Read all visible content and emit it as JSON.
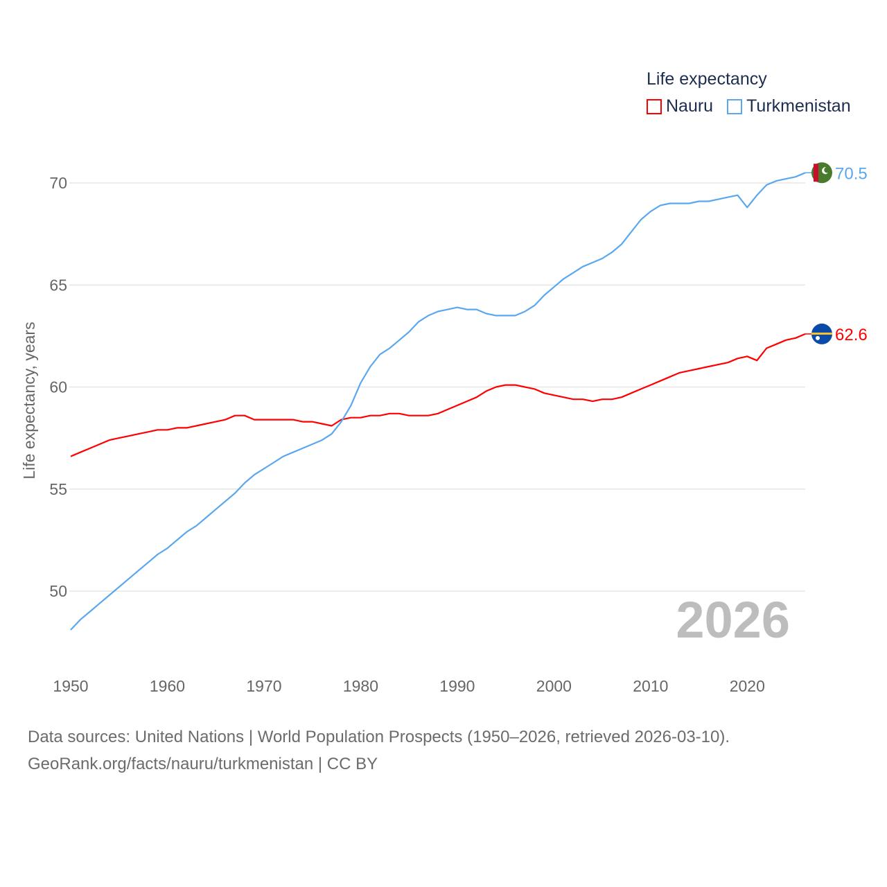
{
  "chart_data": {
    "type": "line",
    "title": "",
    "xlabel": "",
    "ylabel": "Life expectancy, years",
    "xlim": [
      1950,
      2026
    ],
    "ylim": [
      47.9,
      71.5
    ],
    "x_ticks": [
      1950,
      1960,
      1970,
      1980,
      1990,
      2000,
      2010,
      2020
    ],
    "y_ticks": [
      50,
      55,
      60,
      65,
      70
    ],
    "grid": true,
    "legend": {
      "title": "Life expectancy",
      "placement": "top-right"
    },
    "watermark_year": "2026",
    "x_start": 1950,
    "series": [
      {
        "name": "Nauru",
        "color": "#ff0000",
        "end_label": "62.6",
        "flag": "nauru-flag",
        "values": [
          56.6,
          56.8,
          57.0,
          57.2,
          57.4,
          57.5,
          57.6,
          57.7,
          57.8,
          57.9,
          57.9,
          58.0,
          58.0,
          58.1,
          58.2,
          58.3,
          58.4,
          58.6,
          58.6,
          58.4,
          58.4,
          58.4,
          58.4,
          58.4,
          58.3,
          58.3,
          58.2,
          58.1,
          58.4,
          58.5,
          58.5,
          58.6,
          58.6,
          58.7,
          58.7,
          58.6,
          58.6,
          58.6,
          58.7,
          58.9,
          59.1,
          59.3,
          59.5,
          59.8,
          60.0,
          60.1,
          60.1,
          60.0,
          59.9,
          59.7,
          59.6,
          59.5,
          59.4,
          59.4,
          59.3,
          59.4,
          59.4,
          59.5,
          59.7,
          59.9,
          60.1,
          60.3,
          60.5,
          60.7,
          60.8,
          60.9,
          61.0,
          61.1,
          61.2,
          61.4,
          61.5,
          61.3,
          61.9,
          62.1,
          62.3,
          62.4,
          62.6
        ]
      },
      {
        "name": "Turkmenistan",
        "color": "#5ba7ef",
        "end_label": "70.5",
        "flag": "turkmenistan-flag",
        "values": [
          48.1,
          48.6,
          49.0,
          49.4,
          49.8,
          50.2,
          50.6,
          51.0,
          51.4,
          51.8,
          52.1,
          52.5,
          52.9,
          53.2,
          53.6,
          54.0,
          54.4,
          54.8,
          55.3,
          55.7,
          56.0,
          56.3,
          56.6,
          56.8,
          57.0,
          57.2,
          57.4,
          57.7,
          58.3,
          59.1,
          60.2,
          61.0,
          61.6,
          61.9,
          62.3,
          62.7,
          63.2,
          63.5,
          63.7,
          63.8,
          63.9,
          63.8,
          63.8,
          63.6,
          63.5,
          63.5,
          63.5,
          63.7,
          64.0,
          64.5,
          64.9,
          65.3,
          65.6,
          65.9,
          66.1,
          66.3,
          66.6,
          67.0,
          67.6,
          68.2,
          68.6,
          68.9,
          69.0,
          69.0,
          69.0,
          69.1,
          69.1,
          69.2,
          69.3,
          69.4,
          68.8,
          69.4,
          69.9,
          70.1,
          70.2,
          70.3,
          70.5
        ]
      }
    ]
  },
  "legend": {
    "title": "Life expectancy",
    "items": [
      "Nauru",
      "Turkmenistan"
    ]
  },
  "footer": {
    "line1": "Data sources: United Nations | World Population Prospects (1950–2026, retrieved 2026-03-10).",
    "line2": "GeoRank.org/facts/nauru/turkmenistan | CC BY"
  }
}
